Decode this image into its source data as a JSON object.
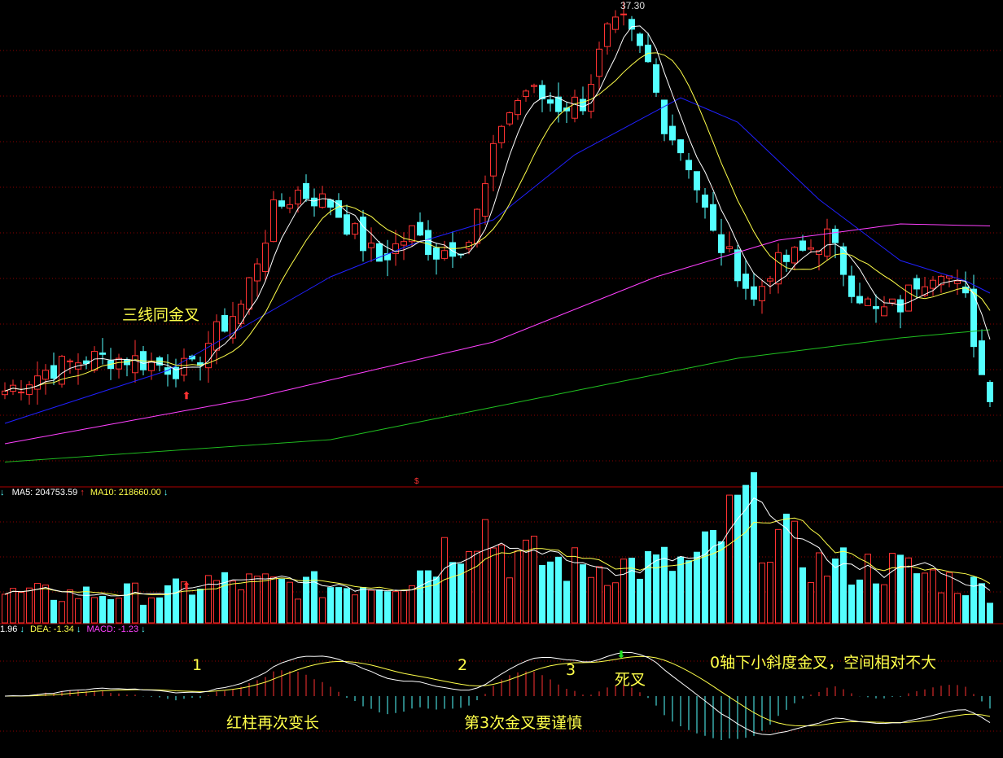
{
  "chart_data": [
    {
      "type": "candlestick",
      "panel": "price",
      "max_label": "37.30",
      "close_keypoints": {
        "index": [
          0,
          5,
          10,
          15,
          20,
          23,
          25,
          29,
          33,
          36,
          40,
          44,
          46,
          50,
          53,
          57,
          59,
          61,
          64,
          68,
          71,
          74,
          76,
          79,
          81,
          84,
          87,
          90,
          92,
          94,
          98,
          101,
          104,
          107,
          110,
          112,
          115,
          118,
          120,
          121
        ],
        "close": [
          18.3,
          19.3,
          19.9,
          19.9,
          19.5,
          19.3,
          20.7,
          22.5,
          27.1,
          28.1,
          27.5,
          25.5,
          24.7,
          26.1,
          25.1,
          25.7,
          28.3,
          31.5,
          33.1,
          32.3,
          32.5,
          35.9,
          36.3,
          34.3,
          31.5,
          29.5,
          25.9,
          24.3,
          22.7,
          24.3,
          25.1,
          25.9,
          23.5,
          22.1,
          22.5,
          23.7,
          24.5,
          22.7,
          19.1,
          18.3
        ]
      },
      "ma30_keypoints": {
        "index": [
          0,
          20,
          40,
          50,
          60,
          70,
          83,
          90,
          100,
          110,
          118,
          121
        ],
        "value": [
          16.7,
          19.3,
          23.9,
          25.5,
          26.7,
          29.9,
          32.7,
          31.5,
          27.7,
          24.7,
          23.7,
          23.1
        ]
      },
      "ma60_keypoints": {
        "index": [
          0,
          30,
          60,
          80,
          95,
          110,
          121
        ],
        "value": [
          15.7,
          17.9,
          20.7,
          23.9,
          25.7,
          26.5,
          26.4
        ]
      },
      "ma120_keypoints": {
        "index": [
          0,
          40,
          70,
          90,
          110,
          121
        ],
        "value": [
          14.8,
          15.9,
          18.3,
          19.9,
          20.9,
          21.3
        ]
      },
      "colors": {
        "up": "#ff3232",
        "down": "#54ffff",
        "ma5": "#ffffff",
        "ma10": "#ffff4a",
        "ma30": "#2020ff",
        "ma60": "#ff40ff",
        "ma120": "#20c020",
        "grid": "#8b0000"
      }
    },
    {
      "type": "bar",
      "panel": "volume",
      "legend": {
        "ma5": "MA5: 204753.59",
        "ma10": "MA10: 218660.00"
      },
      "volume_keypoints": {
        "index": [
          0,
          20,
          25,
          40,
          50,
          55,
          58,
          62,
          70,
          85,
          91,
          94,
          100,
          110,
          121
        ],
        "volume": [
          126000,
          130000,
          180000,
          160000,
          200000,
          360000,
          468000,
          300000,
          250000,
          260000,
          522000,
          396000,
          252000,
          240000,
          144000
        ]
      }
    },
    {
      "type": "line",
      "panel": "macd",
      "legend": {
        "dif": "1.96",
        "dea": "DEA: -1.34",
        "macd": "MACD: -1.23"
      },
      "colors": {
        "dif": "#ffffff",
        "dea": "#ffff4a",
        "macd": "#ff40ff",
        "pos": "#ff3232",
        "neg": "#54ffff"
      }
    }
  ],
  "annotations": {
    "triple_cross": "三线同金叉",
    "n1": "1",
    "n2": "2",
    "n3": "3",
    "death_cross": "死叉",
    "below_zero": "0轴下小斜度金叉，空间相对不大",
    "red_longer": "红柱再次变长",
    "third_cross": "第3次金叉要谨慎"
  }
}
